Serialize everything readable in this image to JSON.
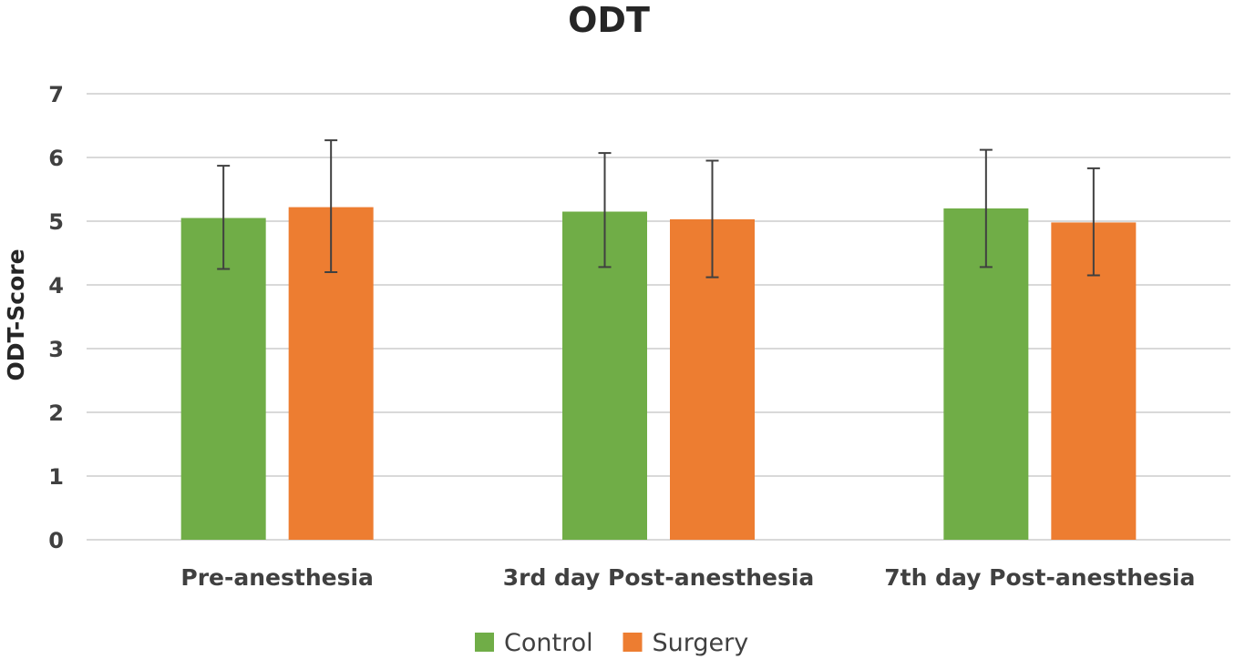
{
  "chart_data": {
    "type": "bar",
    "title": "ODT",
    "xlabel": "",
    "ylabel": "ODT-Score",
    "ylim": [
      0,
      7
    ],
    "yticks": [
      0,
      1,
      2,
      3,
      4,
      5,
      6,
      7
    ],
    "grid": true,
    "legend_position": "bottom",
    "categories": [
      "Pre-anesthesia",
      "3rd day Post-anesthesia",
      "7th day Post-anesthesia"
    ],
    "series": [
      {
        "name": "Control",
        "color": "#70ad47",
        "values": [
          5.05,
          5.15,
          5.2
        ],
        "error_low": [
          4.25,
          4.28,
          4.28
        ],
        "error_high": [
          5.87,
          6.07,
          6.12
        ]
      },
      {
        "name": "Surgery",
        "color": "#ed7d31",
        "values": [
          5.22,
          5.03,
          4.98
        ],
        "error_low": [
          4.2,
          4.12,
          4.15
        ],
        "error_high": [
          6.27,
          5.95,
          5.83
        ]
      }
    ]
  }
}
